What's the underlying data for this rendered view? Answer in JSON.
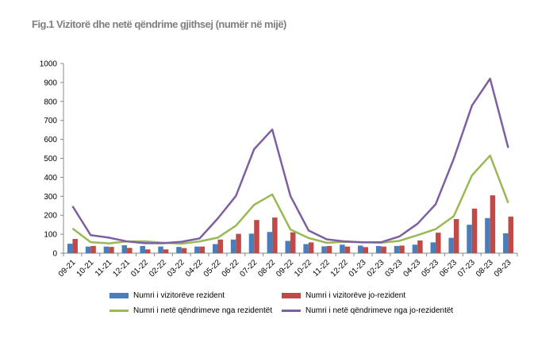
{
  "chart_data": {
    "type": "bar+line",
    "title": "Fig.1 Vizitorë dhe netë qëndrime gjithsej (numër në mijë)",
    "categories": [
      "09-21",
      "10-21",
      "11-21",
      "12-21",
      "01-22",
      "02-22",
      "03-22",
      "04-22",
      "05-22",
      "06-22",
      "07-22",
      "08-22",
      "09-22",
      "10-22",
      "11-22",
      "12-22",
      "01-23",
      "02-23",
      "03-23",
      "04-23",
      "05-23",
      "06-23",
      "07-23",
      "08-23",
      "09-23"
    ],
    "ylim": [
      0,
      1000
    ],
    "yticks": [
      0,
      100,
      200,
      300,
      400,
      500,
      600,
      700,
      800,
      900,
      1000
    ],
    "series": [
      {
        "name": "Numri i vizitorëve rezident",
        "kind": "bar",
        "color": "#4a7ebb",
        "values": [
          50,
          35,
          35,
          42,
          38,
          35,
          33,
          35,
          48,
          72,
          103,
          112,
          65,
          48,
          36,
          45,
          40,
          38,
          38,
          45,
          57,
          81,
          150,
          185,
          105
        ]
      },
      {
        "name": "Numri i vizitorëve jo-rezident",
        "kind": "bar",
        "color": "#be4b48",
        "values": [
          75,
          38,
          33,
          28,
          20,
          20,
          27,
          35,
          72,
          102,
          175,
          188,
          110,
          57,
          38,
          35,
          32,
          35,
          40,
          67,
          108,
          180,
          235,
          305,
          193
        ]
      },
      {
        "name": "Numri i netë qëndrimeve nga rezidentët",
        "kind": "line",
        "color": "#98b954",
        "values": [
          130,
          58,
          52,
          62,
          62,
          55,
          50,
          62,
          82,
          145,
          255,
          310,
          125,
          80,
          55,
          60,
          58,
          55,
          65,
          95,
          127,
          195,
          410,
          515,
          265
        ]
      },
      {
        "name": "Numri i netë qëndrimeve nga jo-rezidentët",
        "kind": "line",
        "color": "#7d60a0",
        "values": [
          248,
          95,
          82,
          62,
          53,
          53,
          60,
          78,
          183,
          302,
          548,
          652,
          302,
          120,
          73,
          62,
          57,
          58,
          88,
          155,
          258,
          498,
          778,
          920,
          555
        ]
      }
    ],
    "legend": "bottom"
  }
}
